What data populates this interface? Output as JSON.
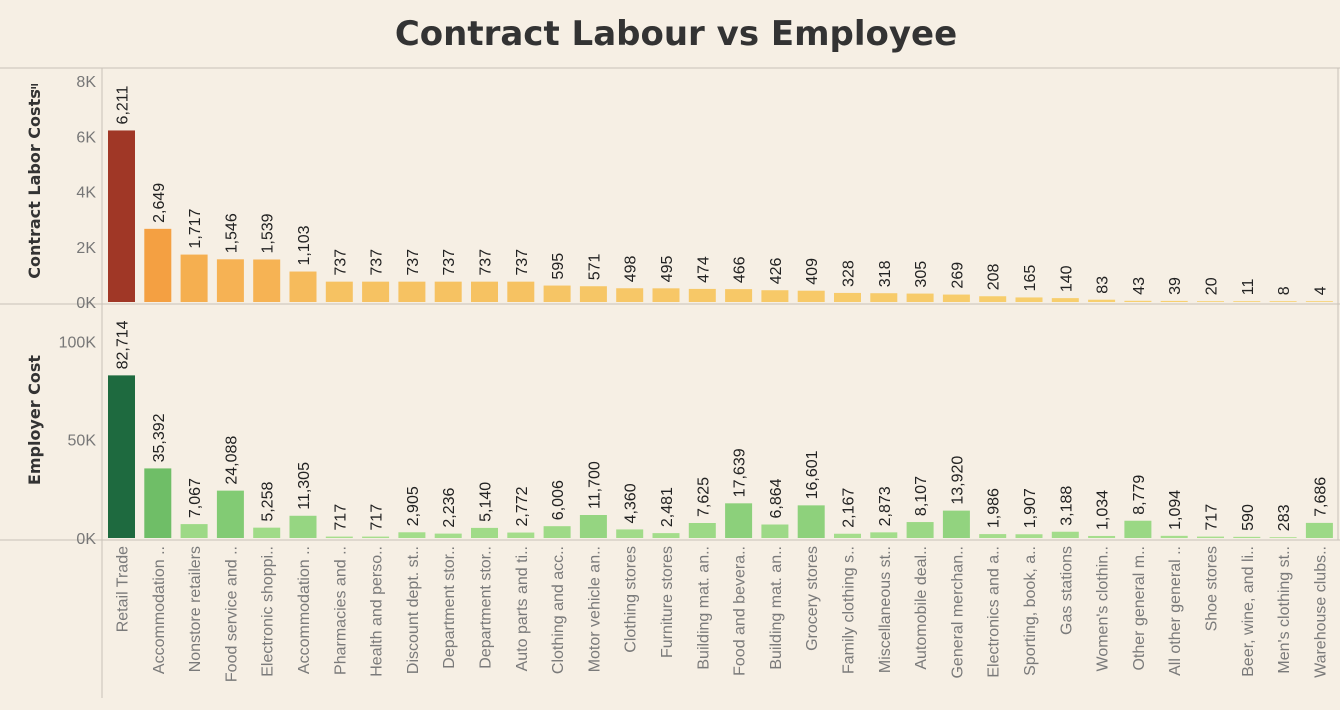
{
  "title": "Contract Labour vs Employee",
  "chart_data": [
    {
      "type": "bar",
      "title": "Contract Labour vs Employee",
      "ylabel": "Contract Labor Costs",
      "ylim": [
        0,
        8400
      ],
      "yticks": [
        0,
        2000,
        4000,
        6000,
        8000
      ],
      "ytick_labels": [
        "0K",
        "2K",
        "4K",
        "6K",
        "8K"
      ],
      "grid": false,
      "categories": [
        "Retail Trade",
        "Accommodation ..",
        "Nonstore retailers",
        "Food service and ..",
        "Electronic shoppi..",
        "Accommodation ..",
        "Pharmacies and ..",
        "Health and perso..",
        "Discount dept. st..",
        "Department stor..",
        "Department stor..",
        "Auto parts and ti..",
        "Clothing and acc..",
        "Motor vehicle an..",
        "Clothing stores",
        "Furniture stores",
        "Building mat. an..",
        "Food and bevera..",
        "Building mat. an..",
        "Grocery stores",
        "Family clothing s..",
        "Miscellaneous st..",
        "Automobile deal..",
        "General merchan..",
        "Electronics and a..",
        "Sporting, book, a..",
        "Gas stations",
        "Women's clothin..",
        "Other general m..",
        "All other general ..",
        "Shoe stores",
        "Beer, wine, and li..",
        "Men's clothing st..",
        "Warehouse clubs.."
      ],
      "values": [
        6211,
        2649,
        1717,
        1546,
        1539,
        1103,
        737,
        737,
        737,
        737,
        737,
        737,
        595,
        571,
        498,
        495,
        474,
        466,
        426,
        409,
        328,
        318,
        305,
        269,
        208,
        165,
        140,
        83,
        43,
        39,
        20,
        11,
        8,
        4
      ],
      "data_labels": [
        "6,211",
        "2,649",
        "1,717",
        "1,546",
        "1,539",
        "1,103",
        "737",
        "737",
        "737",
        "737",
        "737",
        "737",
        "595",
        "571",
        "498",
        "495",
        "474",
        "466",
        "426",
        "409",
        "328",
        "318",
        "305",
        "269",
        "208",
        "165",
        "140",
        "83",
        "43",
        "39",
        "20",
        "11",
        "8",
        "4"
      ],
      "color_scale": [
        "#f7d170",
        "#f5a84a",
        "#f28a2c",
        "#a03726"
      ]
    },
    {
      "type": "bar",
      "ylabel": "Employer Cost",
      "ylim": [
        0,
        118000
      ],
      "yticks": [
        0,
        50000,
        100000
      ],
      "ytick_labels": [
        "0K",
        "50K",
        "100K"
      ],
      "grid": false,
      "categories": [
        "Retail Trade",
        "Accommodation ..",
        "Nonstore retailers",
        "Food service and ..",
        "Electronic shoppi..",
        "Accommodation ..",
        "Pharmacies and ..",
        "Health and perso..",
        "Discount dept. st..",
        "Department stor..",
        "Department stor..",
        "Auto parts and ti..",
        "Clothing and acc..",
        "Motor vehicle an..",
        "Clothing stores",
        "Furniture stores",
        "Building mat. an..",
        "Food and bevera..",
        "Building mat. an..",
        "Grocery stores",
        "Family clothing s..",
        "Miscellaneous st..",
        "Automobile deal..",
        "General merchan..",
        "Electronics and a..",
        "Sporting, book, a..",
        "Gas stations",
        "Women's clothin..",
        "Other general m..",
        "All other general ..",
        "Shoe stores",
        "Beer, wine, and li..",
        "Men's clothing st..",
        "Warehouse clubs.."
      ],
      "values": [
        82714,
        35392,
        7067,
        24088,
        5258,
        11305,
        717,
        717,
        2905,
        2236,
        5140,
        2772,
        6006,
        11700,
        4360,
        2481,
        7625,
        17639,
        6864,
        16601,
        2167,
        2873,
        8107,
        13920,
        1986,
        1907,
        3188,
        1034,
        8779,
        1094,
        717,
        590,
        283,
        7686
      ],
      "data_labels": [
        "82,714",
        "35,392",
        "7,067",
        "24,088",
        "5,258",
        "11,305",
        "717",
        "717",
        "2,905",
        "2,236",
        "5,140",
        "2,772",
        "6,006",
        "11,700",
        "4,360",
        "2,481",
        "7,625",
        "17,639",
        "6,864",
        "16,601",
        "2,167",
        "2,873",
        "8,107",
        "13,920",
        "1,986",
        "1,907",
        "3,188",
        "1,034",
        "8,779",
        "1,094",
        "717",
        "590",
        "283",
        "7,686"
      ],
      "color_scale": [
        "#a8df8e",
        "#7cc870",
        "#4ea350",
        "#1e6a3f"
      ]
    }
  ]
}
